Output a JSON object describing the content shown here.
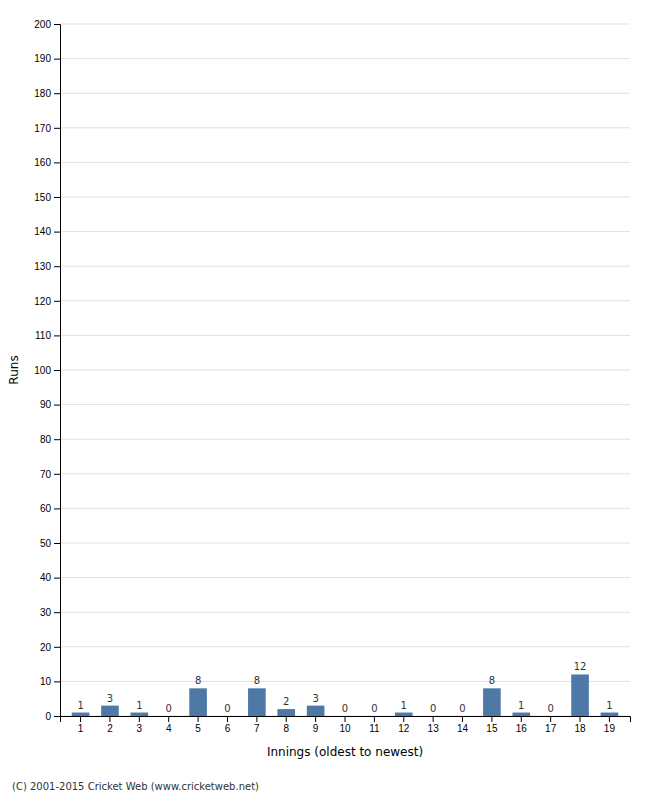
{
  "chart_data": {
    "type": "bar",
    "xlabel": "Innings (oldest to newest)",
    "ylabel": "Runs",
    "categories": [
      1,
      2,
      3,
      4,
      5,
      6,
      7,
      8,
      9,
      10,
      11,
      12,
      13,
      14,
      15,
      16,
      17,
      18,
      19
    ],
    "values": [
      1,
      3,
      1,
      0,
      8,
      0,
      8,
      2,
      3,
      0,
      0,
      1,
      0,
      0,
      8,
      1,
      0,
      12,
      1
    ],
    "ylim": [
      0,
      200
    ],
    "yticks": [
      0,
      10,
      20,
      30,
      40,
      50,
      60,
      70,
      80,
      90,
      100,
      110,
      120,
      130,
      140,
      150,
      160,
      170,
      180,
      190,
      200
    ],
    "grid": true,
    "data_labels": true,
    "annotations": [
      "(C) 2001-2015 Cricket Web (www.cricketweb.net)"
    ]
  }
}
